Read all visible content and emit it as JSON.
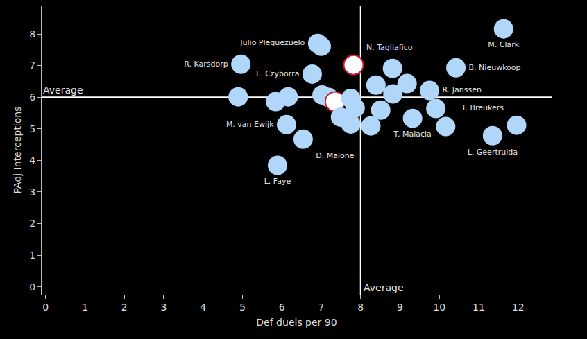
{
  "chart_data": {
    "type": "scatter",
    "x_label": "Def duels per 90",
    "y_label": "PAdj Interceptions",
    "x": [
      11.63,
      6.91,
      7.0,
      4.96,
      7.82,
      6.77,
      10.42,
      8.81,
      8.39,
      9.18,
      8.82,
      9.75,
      4.89,
      5.84,
      6.16,
      7.02,
      7.19,
      7.35,
      7.75,
      7.86,
      7.49,
      7.75,
      8.26,
      8.51,
      9.32,
      9.91,
      10.16,
      11.96,
      11.35,
      6.12,
      6.54,
      5.89
    ],
    "y": [
      8.16,
      7.7,
      7.61,
      7.04,
      7.02,
      6.73,
      6.93,
      6.91,
      6.38,
      6.43,
      6.1,
      6.21,
      6.01,
      5.86,
      6.01,
      6.07,
      5.99,
      5.86,
      5.96,
      5.66,
      5.37,
      5.15,
      5.09,
      5.59,
      5.33,
      5.64,
      5.07,
      5.11,
      4.78,
      5.13,
      4.67,
      3.84
    ],
    "labels": [
      "M. Clark",
      "Julio Pleguezuelo",
      null,
      "R. Karsdorp",
      "N. Tagliafico",
      "L. Czyborra",
      "B. Nieuwkoop",
      null,
      null,
      null,
      null,
      "R. Janssen",
      null,
      null,
      null,
      null,
      null,
      null,
      null,
      null,
      null,
      null,
      null,
      null,
      "T. Malacia",
      null,
      null,
      "T. Breukers",
      "L. Geertruida",
      "M. van Ewijk",
      "D. Malone",
      "L. Faye"
    ],
    "colors": [
      "#b0d6f9",
      "#b0d6f9",
      "#b0d6f9",
      "#b0d6f9",
      "#ffffff",
      "#b0d6f9",
      "#b0d6f9",
      "#b0d6f9",
      "#b0d6f9",
      "#b0d6f9",
      "#b0d6f9",
      "#b0d6f9",
      "#b0d6f9",
      "#b0d6f9",
      "#b0d6f9",
      "#b0d6f9",
      "#b0d6f9",
      "#ffffff",
      "#b0d6f9",
      "#b0d6f9",
      "#b0d6f9",
      "#b0d6f9",
      "#b0d6f9",
      "#b0d6f9",
      "#b0d6f9",
      "#b0d6f9",
      "#b0d6f9",
      "#b0d6f9",
      "#b0d6f9",
      "#b0d6f9",
      "#b0d6f9",
      "#b0d6f9"
    ],
    "averages": {
      "x": 8,
      "y": 6,
      "label": "Average"
    },
    "xlim": [
      -0.1,
      12.85
    ],
    "ylim": [
      -0.25,
      8.9
    ],
    "xticks": [
      0,
      1,
      2,
      3,
      4,
      5,
      6,
      7,
      8,
      9,
      10,
      11,
      12
    ],
    "yticks": [
      0,
      1,
      2,
      3,
      4,
      5,
      6,
      7,
      8
    ],
    "grid": false
  }
}
